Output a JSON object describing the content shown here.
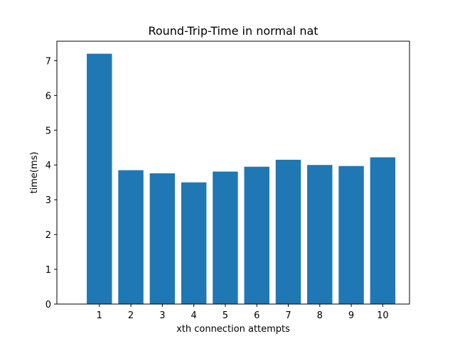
{
  "chart_data": {
    "type": "bar",
    "title": "Round-Trip-Time in normal nat",
    "xlabel": "xth connection attempts",
    "ylabel": "time(ms)",
    "categories": [
      "1",
      "2",
      "3",
      "4",
      "5",
      "6",
      "7",
      "8",
      "9",
      "10"
    ],
    "values": [
      7.2,
      3.85,
      3.76,
      3.5,
      3.81,
      3.95,
      4.15,
      4.0,
      3.97,
      4.22
    ],
    "yticks": [
      "0",
      "1",
      "2",
      "3",
      "4",
      "5",
      "6",
      "7"
    ],
    "ylim": [
      0,
      7.56
    ],
    "grid": false,
    "bar_color": "#1f77b4"
  }
}
